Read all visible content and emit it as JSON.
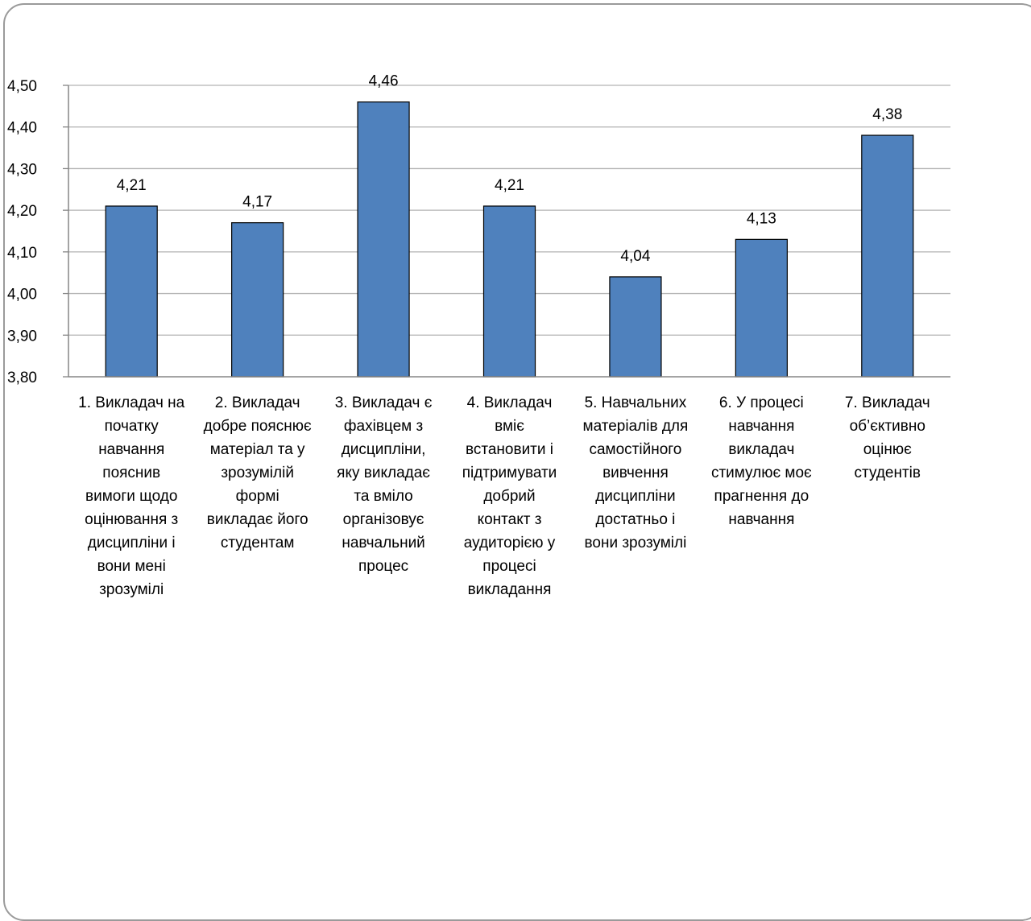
{
  "chart_data": {
    "type": "bar",
    "categories": [
      [
        "1. Викладач на",
        "початку",
        "навчання",
        "пояснив",
        "вимоги щодо",
        "оцінювання з",
        "дисципліни і",
        "вони мені",
        "зрозумілі"
      ],
      [
        "2. Викладач",
        "добре пояснює",
        "матеріал та у",
        "зрозумілій",
        "формі",
        "викладає його",
        "студентам"
      ],
      [
        "3. Викладач є",
        "фахівцем з",
        "дисципліни,",
        "яку викладає",
        "та вміло",
        "організовує",
        "навчальний",
        "процес"
      ],
      [
        "4. Викладач",
        "вміє",
        "встановити і",
        "підтримувати",
        "добрий",
        "контакт з",
        "аудиторією у",
        "процесі",
        "викладання"
      ],
      [
        "5. Навчальних",
        "матеріалів для",
        "самостійного",
        "вивчення",
        "дисципліни",
        "достатньо і",
        "вони зрозумілі"
      ],
      [
        "6.  У процесі",
        "навчання",
        "викладач",
        "стимулює моє",
        "прагнення до",
        "навчання"
      ],
      [
        "7. Викладач",
        "об’єктивно",
        "оцінює",
        "студентів"
      ]
    ],
    "values": [
      4.21,
      4.17,
      4.46,
      4.21,
      4.04,
      4.13,
      4.38
    ],
    "data_labels": [
      "4,21",
      "4,17",
      "4,46",
      "4,21",
      "4,04",
      "4,13",
      "4,38"
    ],
    "y_ticks": [
      "3,80",
      "3,90",
      "4,00",
      "4,10",
      "4,20",
      "4,30",
      "4,40",
      "4,50"
    ],
    "y_tick_values": [
      3.8,
      3.9,
      4.0,
      4.1,
      4.2,
      4.3,
      4.4,
      4.5
    ],
    "ylim": [
      3.8,
      4.5
    ],
    "title": "",
    "xlabel": "",
    "ylabel": "",
    "grid": true,
    "legend": "none",
    "colors": {
      "bar": "#4f81bd",
      "bar_edge": "#000000",
      "grid": "#b3b3b3",
      "axis": "#868686",
      "frame": "#9a9a9a"
    }
  }
}
